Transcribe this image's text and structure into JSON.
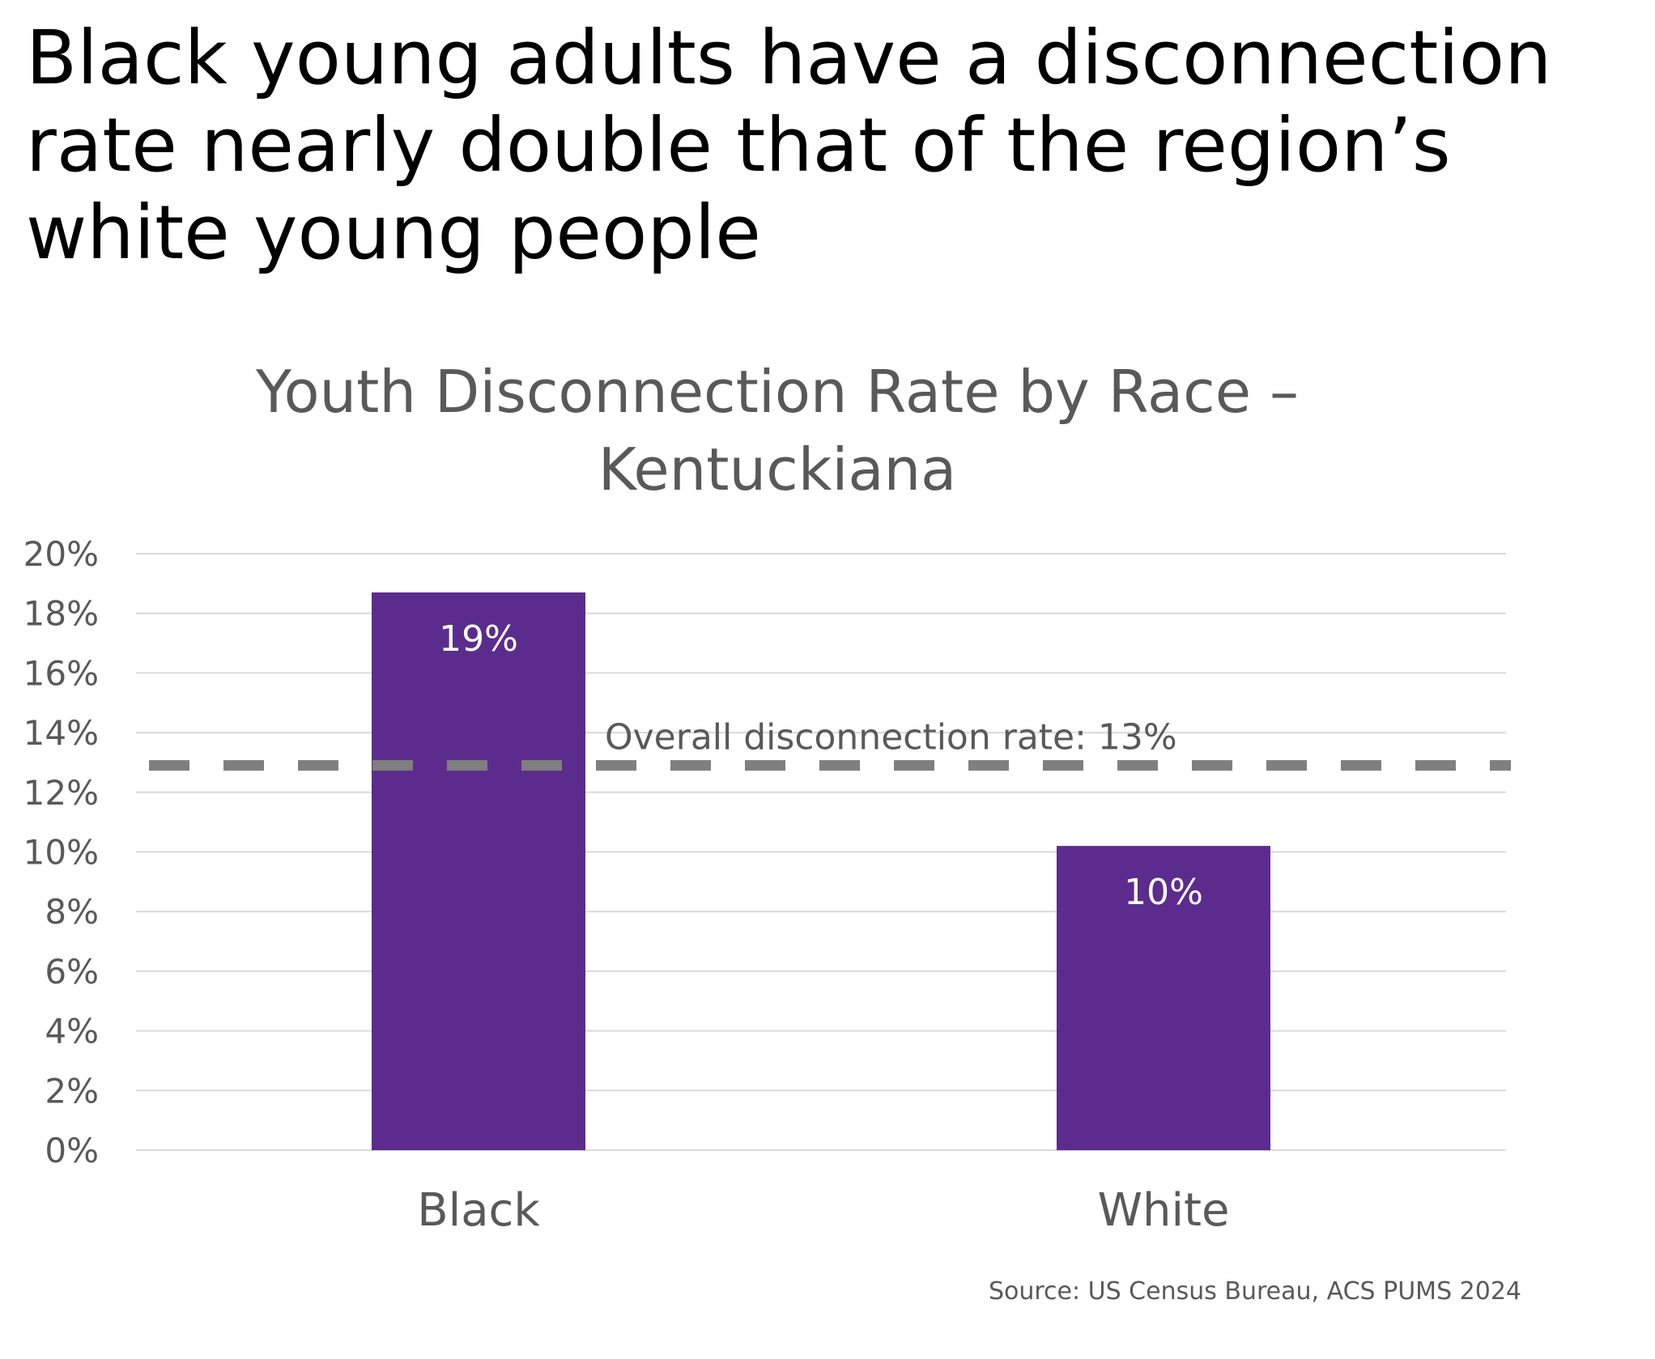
{
  "headline": "Black young adults have a disconnection rate nearly double that of the region’s white young people",
  "source": "Source: US Census Bureau, ACS PUMS 2024",
  "colors": {
    "bar": "#5B2C8D",
    "gridline": "#D9D9D9",
    "reference_line": "#7F7F7F",
    "text": "#595959",
    "bar_label": "#FFFFFF"
  },
  "chart_data": {
    "type": "bar",
    "title": "Youth Disconnection Rate by Race – Kentuckiana",
    "categories": [
      "Black",
      "White"
    ],
    "values": [
      18.7,
      10.2
    ],
    "data_labels": [
      "19%",
      "10%"
    ],
    "ylim": [
      0,
      20
    ],
    "yticks": [
      0,
      2,
      4,
      6,
      8,
      10,
      12,
      14,
      16,
      18,
      20
    ],
    "ytick_labels": [
      "0%",
      "2%",
      "4%",
      "6%",
      "8%",
      "10%",
      "12%",
      "14%",
      "16%",
      "18%",
      "20%"
    ],
    "grid": true,
    "reference_line": {
      "value": 12.9,
      "label": "Overall disconnection rate: 13%",
      "style": "dashed"
    }
  }
}
